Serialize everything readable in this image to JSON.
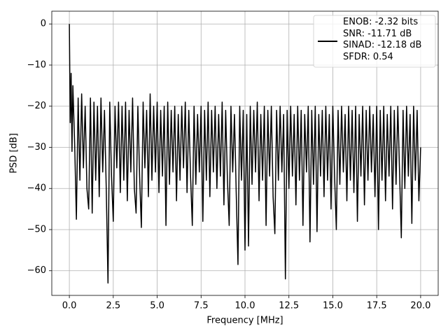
{
  "chart_data": {
    "type": "line",
    "xlabel": "Frequency [MHz]",
    "ylabel": "PSD [dB]",
    "xlim": [
      -1.0,
      21.0
    ],
    "ylim": [
      -66,
      3.1
    ],
    "grid": true,
    "legend": "upper right",
    "xticks": [
      {
        "value": 0,
        "label": "0.0"
      },
      {
        "value": 2.5,
        "label": "2.5"
      },
      {
        "value": 5,
        "label": "5.0"
      },
      {
        "value": 7.5,
        "label": "7.5"
      },
      {
        "value": 10,
        "label": "10.0"
      },
      {
        "value": 12.5,
        "label": "12.5"
      },
      {
        "value": 15,
        "label": "15.0"
      },
      {
        "value": 17.5,
        "label": "17.5"
      },
      {
        "value": 20,
        "label": "20.0"
      }
    ],
    "yticks": [
      0,
      {
        "value": -10,
        "label": "−10"
      },
      {
        "value": -20,
        "label": "−20"
      },
      {
        "value": -30,
        "label": "−30"
      },
      {
        "value": -40,
        "label": "−40"
      },
      {
        "value": -50,
        "label": "−50"
      },
      {
        "value": -60,
        "label": "−60"
      }
    ],
    "x": [
      0,
      0.05,
      0.1,
      0.15,
      0.2,
      0.3,
      0.4,
      0.5,
      0.6,
      0.7,
      0.8,
      0.9,
      1.0,
      1.1,
      1.2,
      1.3,
      1.4,
      1.5,
      1.6,
      1.7,
      1.8,
      1.9,
      2.0,
      2.1,
      2.2,
      2.3,
      2.4,
      2.5,
      2.6,
      2.7,
      2.8,
      2.9,
      3.0,
      3.1,
      3.2,
      3.3,
      3.4,
      3.5,
      3.6,
      3.7,
      3.8,
      3.9,
      4.0,
      4.1,
      4.2,
      4.3,
      4.4,
      4.5,
      4.6,
      4.7,
      4.8,
      4.9,
      5.0,
      5.1,
      5.2,
      5.3,
      5.4,
      5.5,
      5.6,
      5.7,
      5.8,
      5.9,
      6.0,
      6.1,
      6.2,
      6.3,
      6.4,
      6.5,
      6.6,
      6.7,
      6.8,
      6.9,
      7.0,
      7.1,
      7.2,
      7.3,
      7.4,
      7.5,
      7.6,
      7.7,
      7.8,
      7.9,
      8.0,
      8.1,
      8.2,
      8.3,
      8.4,
      8.5,
      8.6,
      8.7,
      8.8,
      8.9,
      9.0,
      9.1,
      9.2,
      9.3,
      9.4,
      9.5,
      9.6,
      9.7,
      9.8,
      9.9,
      10.0,
      10.1,
      10.2,
      10.3,
      10.4,
      10.5,
      10.6,
      10.7,
      10.8,
      10.9,
      11.0,
      11.1,
      11.2,
      11.3,
      11.4,
      11.5,
      11.6,
      11.7,
      11.8,
      11.9,
      12.0,
      12.1,
      12.2,
      12.3,
      12.4,
      12.5,
      12.6,
      12.7,
      12.8,
      12.9,
      13.0,
      13.1,
      13.2,
      13.3,
      13.4,
      13.5,
      13.6,
      13.7,
      13.8,
      13.9,
      14.0,
      14.1,
      14.2,
      14.3,
      14.4,
      14.5,
      14.6,
      14.7,
      14.8,
      14.9,
      15.0,
      15.1,
      15.2,
      15.3,
      15.4,
      15.5,
      15.6,
      15.7,
      15.8,
      15.9,
      16.0,
      16.1,
      16.2,
      16.3,
      16.4,
      16.5,
      16.6,
      16.7,
      16.8,
      16.9,
      17.0,
      17.1,
      17.2,
      17.3,
      17.4,
      17.5,
      17.6,
      17.7,
      17.8,
      17.9,
      18.0,
      18.1,
      18.2,
      18.3,
      18.4,
      18.5,
      18.6,
      18.7,
      18.8,
      18.9,
      19.0,
      19.1,
      19.2,
      19.3,
      19.4,
      19.5,
      19.6,
      19.7,
      19.8,
      19.9,
      20.0
    ],
    "series": [
      {
        "name": "ENOB: -2.32 bits\nSNR: -11.71 dB\nSINAD: -12.18 dB\nSFDR: 0.54",
        "color": "#000000",
        "values": [
          0,
          -24,
          -12,
          -31,
          -15,
          -29,
          -47.5,
          -18,
          -38,
          -17,
          -35,
          -20,
          -40,
          -45,
          -18,
          -46,
          -19,
          -38,
          -20,
          -42,
          -18,
          -36,
          -21,
          -40,
          -63,
          -19,
          -37,
          -48,
          -20,
          -35,
          -19,
          -41,
          -20,
          -38,
          -19,
          -43,
          -21,
          -36,
          -18,
          -40,
          -46,
          -20,
          -37,
          -49.5,
          -19,
          -35,
          -21,
          -42,
          -17,
          -38,
          -20,
          -36,
          -19,
          -41,
          -21,
          -37,
          -20,
          -49,
          -19,
          -39,
          -21,
          -36,
          -20,
          -43,
          -22,
          -38,
          -20,
          -35,
          -19,
          -41,
          -21,
          -37,
          -49,
          -20,
          -39,
          -22,
          -36,
          -20,
          -48,
          -21,
          -38,
          -19,
          -42,
          -21,
          -36,
          -20,
          -40,
          -22,
          -37,
          -19,
          -44,
          -21,
          -38,
          -49,
          -20,
          -36,
          -22,
          -41,
          -58.5,
          -20,
          -38,
          -21,
          -55,
          -22,
          -54,
          -20,
          -39,
          -21,
          -36,
          -19,
          -43,
          -22,
          -38,
          -20,
          -49,
          -21,
          -37,
          -20,
          -42,
          -51,
          -21,
          -38,
          -20,
          -36,
          -22,
          -62,
          -21,
          -40,
          -20,
          -37,
          -22,
          -44,
          -20,
          -38,
          -21,
          -49,
          -22,
          -36,
          -20,
          -53,
          -21,
          -39,
          -20,
          -50.5,
          -22,
          -37,
          -21,
          -42,
          -20,
          -38,
          -22,
          -45,
          -20,
          -37,
          -50,
          -21,
          -39,
          -20,
          -36,
          -22,
          -43,
          -20,
          -38,
          -21,
          -41,
          -20,
          -48,
          -22,
          -37,
          -20,
          -44,
          -21,
          -38,
          -20,
          -36,
          -22,
          -42,
          -20,
          -50,
          -21,
          -38,
          -20,
          -43,
          -22,
          -37,
          -20,
          -45,
          -21,
          -39,
          -20,
          -36,
          -52,
          -21,
          -40,
          -20,
          -37,
          -22,
          -48.5,
          -20,
          -38,
          -21,
          -43,
          -30
        ]
      }
    ]
  }
}
